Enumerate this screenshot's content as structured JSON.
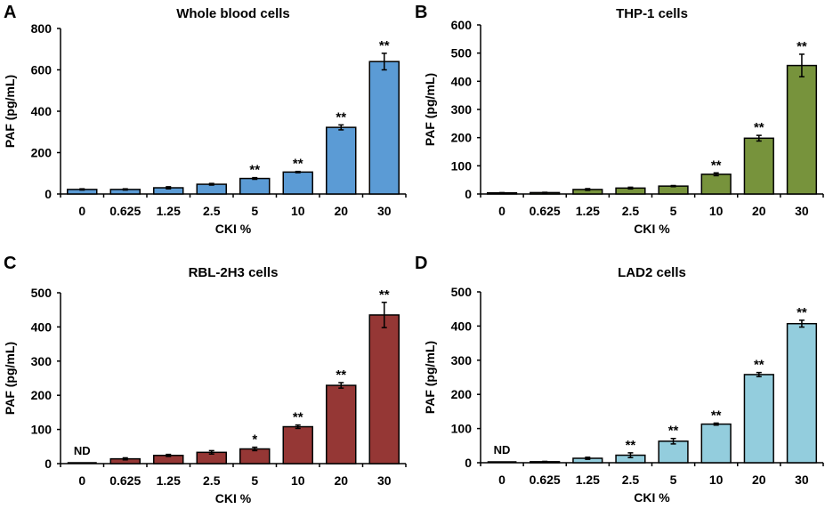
{
  "chart_data": [
    {
      "type": "bar",
      "panel_label": "A",
      "title": "Whole blood cells",
      "xlabel": "CKI %",
      "ylabel": "PAF (pg/mL)",
      "categories": [
        "0",
        "0.625",
        "1.25",
        "2.5",
        "5",
        "10",
        "20",
        "30"
      ],
      "values": [
        22,
        22,
        30,
        47,
        75,
        106,
        322,
        640
      ],
      "errors": [
        3,
        3,
        5,
        4,
        4,
        3,
        12,
        40
      ],
      "annotations": [
        "",
        "",
        "",
        "",
        "**",
        "**",
        "**",
        "**"
      ],
      "ylim": [
        0,
        800
      ],
      "yticks": [
        0,
        200,
        400,
        600,
        800
      ],
      "color": "#5b9bd5"
    },
    {
      "type": "bar",
      "panel_label": "B",
      "title": "THP-1 cells",
      "xlabel": "CKI %",
      "ylabel": "PAF (pg/mL)",
      "categories": [
        "0",
        "0.625",
        "1.25",
        "2.5",
        "5",
        "10",
        "20",
        "30"
      ],
      "values": [
        4,
        5,
        16,
        21,
        28,
        70,
        198,
        456
      ],
      "errors": [
        1,
        1,
        3,
        3,
        2,
        5,
        10,
        40
      ],
      "annotations": [
        "",
        "",
        "",
        "",
        "",
        "**",
        "**",
        "**"
      ],
      "ylim": [
        0,
        600
      ],
      "yticks": [
        0,
        100,
        200,
        300,
        400,
        500,
        600
      ],
      "color": "#77933c"
    },
    {
      "type": "bar",
      "panel_label": "C",
      "title": "RBL-2H3 cells",
      "xlabel": "CKI %",
      "ylabel": "PAF (pg/mL)",
      "categories": [
        "0",
        "0.625",
        "1.25",
        "2.5",
        "5",
        "10",
        "20",
        "30"
      ],
      "values": [
        0,
        14,
        24,
        33,
        43,
        108,
        229,
        435
      ],
      "errors": [
        0,
        3,
        3,
        5,
        5,
        5,
        8,
        37
      ],
      "annotations": [
        "ND",
        "",
        "",
        "",
        "*",
        "**",
        "**",
        "**"
      ],
      "ylim": [
        0,
        500
      ],
      "yticks": [
        0,
        100,
        200,
        300,
        400,
        500
      ],
      "color": "#953735"
    },
    {
      "type": "bar",
      "panel_label": "D",
      "title": "LAD2 cells",
      "xlabel": "CKI %",
      "ylabel": "PAF (pg/mL)",
      "categories": [
        "0",
        "0.625",
        "1.25",
        "2.5",
        "5",
        "10",
        "20",
        "30"
      ],
      "values": [
        0,
        3,
        13,
        22,
        63,
        113,
        258,
        407
      ],
      "errors": [
        0,
        1,
        3,
        7,
        8,
        3,
        6,
        10
      ],
      "annotations": [
        "ND",
        "",
        "",
        "**",
        "**",
        "**",
        "**",
        "**"
      ],
      "ylim": [
        0,
        500
      ],
      "yticks": [
        0,
        100,
        200,
        300,
        400,
        500
      ],
      "color": "#93cddd"
    }
  ]
}
